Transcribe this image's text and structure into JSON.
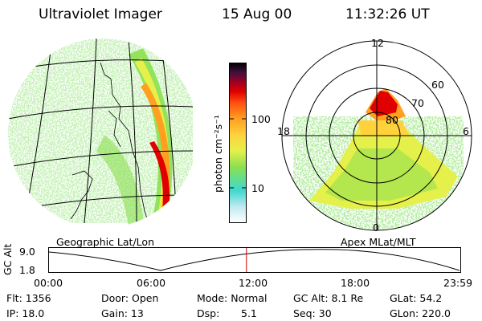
{
  "header": {
    "instrument": "Ultraviolet Imager",
    "date": "15 Aug 00",
    "time": "11:32:26 UT"
  },
  "colorbar": {
    "unit_label": "photon cm⁻²s⁻¹",
    "ticks": [
      "100",
      "10"
    ],
    "scale": "log",
    "colors": [
      "#ffffff",
      "#bfeaf0",
      "#40d8d0",
      "#8be050",
      "#e6f04a",
      "#ffd23c",
      "#ffa020",
      "#ff5010",
      "#e00000",
      "#a00020",
      "#401040",
      "#000000"
    ]
  },
  "panels": {
    "left_caption": "Geographic Lat/Lon",
    "right_caption": "Apex MLat/MLT"
  },
  "polar_plot": {
    "mlt_labels": [
      "12",
      "18",
      "6",
      "0"
    ],
    "lat_labels": [
      "60",
      "70",
      "80"
    ]
  },
  "altitude_plot": {
    "ylabel": "GC Alt",
    "yticks": [
      "9.0",
      "1.8"
    ],
    "xticks": [
      "00:00",
      "06:00",
      "12:00",
      "18:00",
      "23:59"
    ],
    "current_time_fraction": 0.48,
    "marker_color": "#d00000"
  },
  "status": {
    "row1": [
      "Flt: 1356",
      "Door: Open",
      "Mode: Normal",
      "GC Alt: 8.1 Re",
      "GLat: 54.2"
    ],
    "row2": [
      "IP: 18.0",
      "Gain: 13",
      "Dsp:",
      "5.1",
      "Seq: 30",
      "GLon: 220.0"
    ]
  }
}
